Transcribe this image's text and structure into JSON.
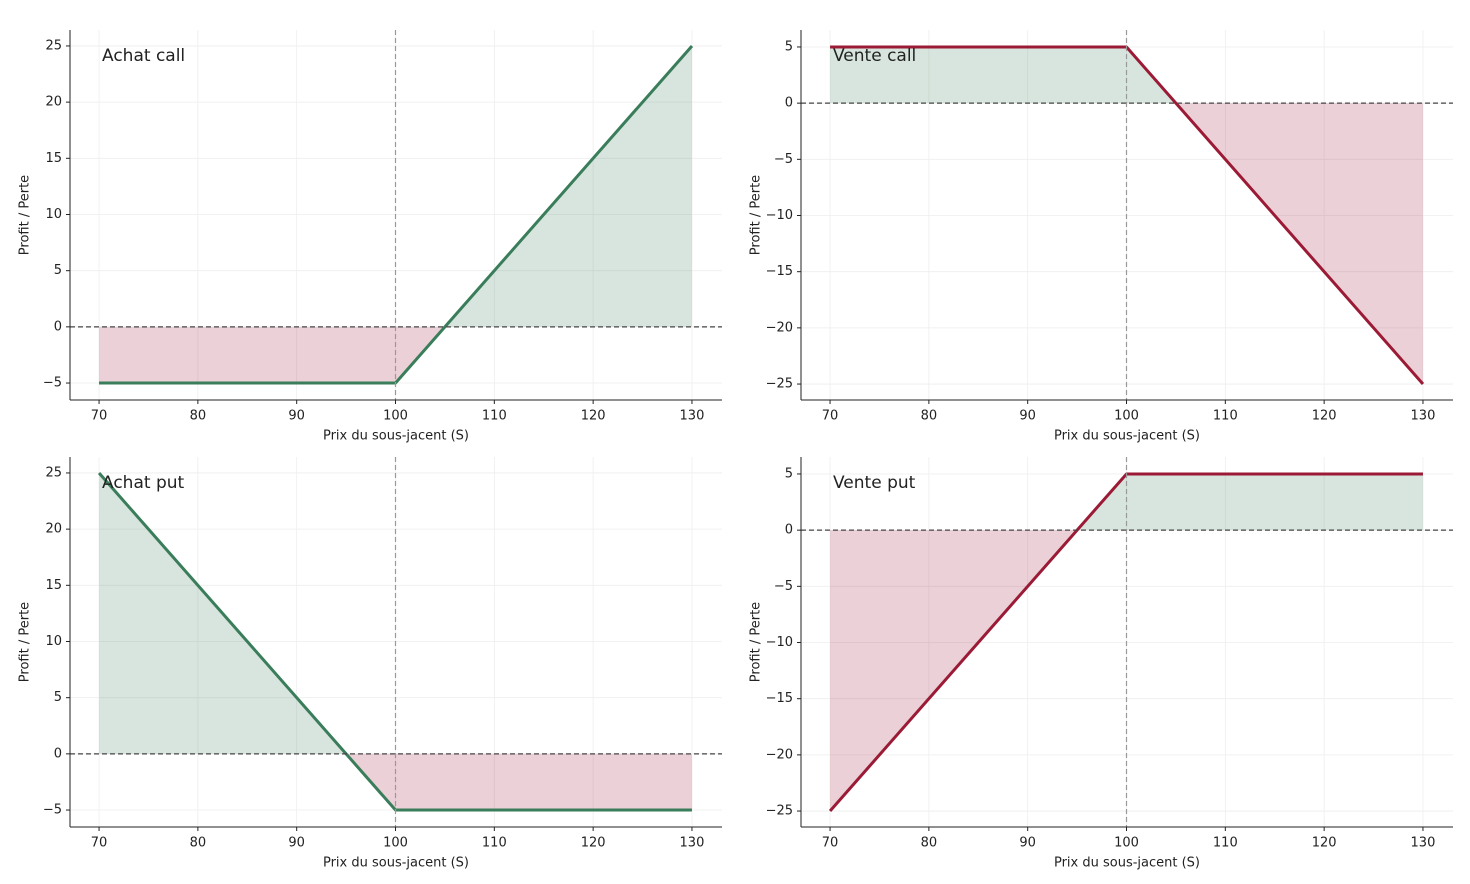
{
  "chart_data": [
    {
      "type": "line",
      "title": "Achat call",
      "x_label": "Prix du sous-jacent (S)",
      "y_label": "Profit / Perte",
      "x": [
        70,
        100,
        130
      ],
      "series": [
        {
          "color": "#3a7d5a",
          "values": [
            -5,
            -5,
            25
          ]
        }
      ],
      "positive_color": "#3a7d5a",
      "negative_color": "#9b1b36",
      "vline": 100,
      "hline": 0,
      "grid": true,
      "xlim": [
        67.06,
        133.04
      ],
      "ylim": [
        -6.51,
        26.42
      ],
      "xticks": [
        70,
        80,
        90,
        100,
        110,
        120,
        130
      ],
      "yticks": [
        {
          "value": -5,
          "label": "−5"
        },
        0,
        5,
        10,
        15,
        20,
        25
      ]
    },
    {
      "type": "line",
      "title": "Vente call",
      "x_label": "Prix du sous-jacent (S)",
      "y_label": "Profit / Perte",
      "x": [
        70,
        100,
        130
      ],
      "series": [
        {
          "color": "#9b1b36",
          "values": [
            5,
            5,
            -25
          ]
        }
      ],
      "positive_color": "#3a7d5a",
      "negative_color": "#9b1b36",
      "vline": 100,
      "hline": 0,
      "grid": true,
      "xlim": [
        67.06,
        133.04
      ],
      "ylim": [
        -26.42,
        6.51
      ],
      "xticks": [
        70,
        80,
        90,
        100,
        110,
        120,
        130
      ],
      "yticks": [
        {
          "value": -25,
          "label": "−25"
        },
        {
          "value": -20,
          "label": "−20"
        },
        {
          "value": -15,
          "label": "−15"
        },
        {
          "value": -10,
          "label": "−10"
        },
        {
          "value": -5,
          "label": "−5"
        },
        0,
        5
      ]
    },
    {
      "type": "line",
      "title": "Achat put",
      "x_label": "Prix du sous-jacent (S)",
      "y_label": "Profit / Perte",
      "x": [
        70,
        100,
        130
      ],
      "series": [
        {
          "color": "#3a7d5a",
          "values": [
            25,
            -5,
            -5
          ]
        }
      ],
      "positive_color": "#3a7d5a",
      "negative_color": "#9b1b36",
      "vline": 100,
      "hline": 0,
      "grid": true,
      "xlim": [
        67.06,
        133.04
      ],
      "ylim": [
        -6.51,
        26.42
      ],
      "xticks": [
        70,
        80,
        90,
        100,
        110,
        120,
        130
      ],
      "yticks": [
        {
          "value": -5,
          "label": "−5"
        },
        0,
        5,
        10,
        15,
        20,
        25
      ]
    },
    {
      "type": "line",
      "title": "Vente put",
      "x_label": "Prix du sous-jacent (S)",
      "y_label": "Profit / Perte",
      "x": [
        70,
        100,
        130
      ],
      "series": [
        {
          "color": "#9b1b36",
          "values": [
            -25,
            5,
            5
          ]
        }
      ],
      "positive_color": "#3a7d5a",
      "negative_color": "#9b1b36",
      "vline": 100,
      "hline": 0,
      "grid": true,
      "xlim": [
        67.06,
        133.04
      ],
      "ylim": [
        -26.42,
        6.51
      ],
      "xticks": [
        70,
        80,
        90,
        100,
        110,
        120,
        130
      ],
      "yticks": [
        {
          "value": -25,
          "label": "−25"
        },
        {
          "value": -20,
          "label": "−20"
        },
        {
          "value": -15,
          "label": "−15"
        },
        {
          "value": -10,
          "label": "−10"
        },
        {
          "value": -5,
          "label": "−5"
        },
        0,
        5
      ]
    }
  ]
}
